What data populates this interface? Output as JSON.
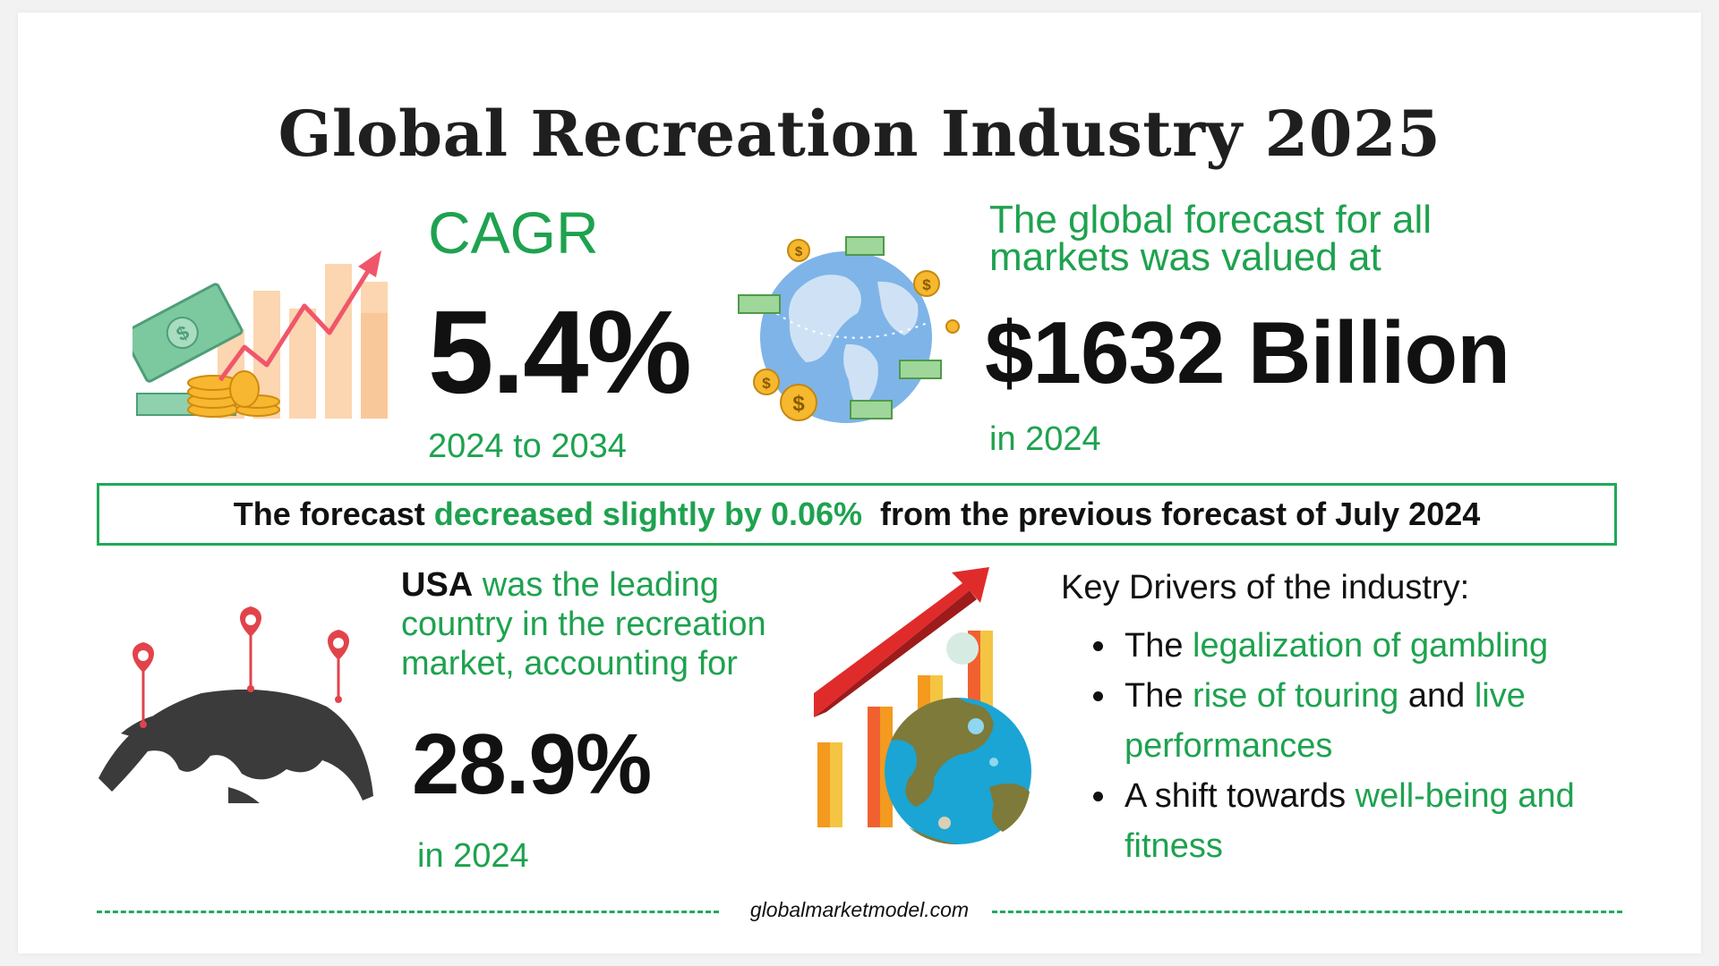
{
  "title": "Global Recreation Industry 2025",
  "cagr": {
    "label": "CAGR",
    "value": "5.4%",
    "period": "2024 to 2034"
  },
  "forecast": {
    "label": "The global forecast for all markets was valued at",
    "value": "$1632 Billion",
    "year": "in 2024"
  },
  "banner": {
    "part1": "The forecast ",
    "highlight": "decreased slightly by 0.06%",
    "part2": "  from the previous forecast of July 2024"
  },
  "usa": {
    "country": "USA",
    "text": " was the leading country in the recreation market, accounting for",
    "value": "28.9%",
    "year": "in 2024"
  },
  "drivers": {
    "title": "Key Drivers of the industry:",
    "item1": {
      "a": "The ",
      "b": "legalization of gambling"
    },
    "item2": {
      "a": "The ",
      "b": "rise of touring",
      "c": " and ",
      "d": "live performances"
    },
    "item3": {
      "a": "A shift towards ",
      "b": "well-being and fitness"
    }
  },
  "footer": "globalmarketmodel.com",
  "icons": [
    "money-growth-chart-icon",
    "globe-money-icon",
    "world-map-pins-icon",
    "growth-chart-globe-icon"
  ],
  "colors": {
    "accent": "#1ea24f",
    "border": "#22a85a",
    "text": "#111111"
  }
}
